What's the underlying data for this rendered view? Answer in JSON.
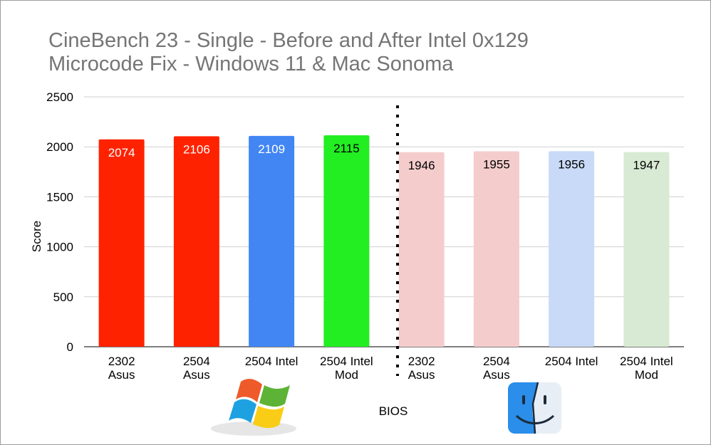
{
  "chart_data": {
    "type": "bar",
    "title_lines": [
      "CineBench 23 - Single - Before and After Intel 0x129",
      "Microcode Fix - Windows 11 & Mac Sonoma"
    ],
    "xlabel": "BIOS",
    "ylabel": "Score",
    "ylim": [
      0,
      2500
    ],
    "yticks": [
      0,
      500,
      1000,
      1500,
      2000,
      2500
    ],
    "grid": true,
    "categories": [
      [
        "2302",
        "Asus"
      ],
      [
        "2504",
        "Asus"
      ],
      [
        "2504 Intel"
      ],
      [
        "2504 Intel",
        "Mod"
      ],
      [
        "2302",
        "Asus"
      ],
      [
        "2504",
        "Asus"
      ],
      [
        "2504 Intel"
      ],
      [
        "2504 Intel",
        "Mod"
      ]
    ],
    "values": [
      2074,
      2106,
      2109,
      2115,
      1946,
      1955,
      1956,
      1947
    ],
    "bar_colors": [
      "#ff2200",
      "#ff2200",
      "#4286f4",
      "#22ee22",
      "#f5cccc",
      "#f5cccc",
      "#c9daf8",
      "#d8ead3"
    ],
    "label_colors": [
      "#ffffff",
      "#ffffff",
      "#ffffff",
      "#000000",
      "#000000",
      "#000000",
      "#000000",
      "#000000"
    ],
    "divider": "dotted vertical line between 4th and 5th bar",
    "logos": [
      "windows-logo-icon",
      "mac-finder-icon"
    ]
  }
}
